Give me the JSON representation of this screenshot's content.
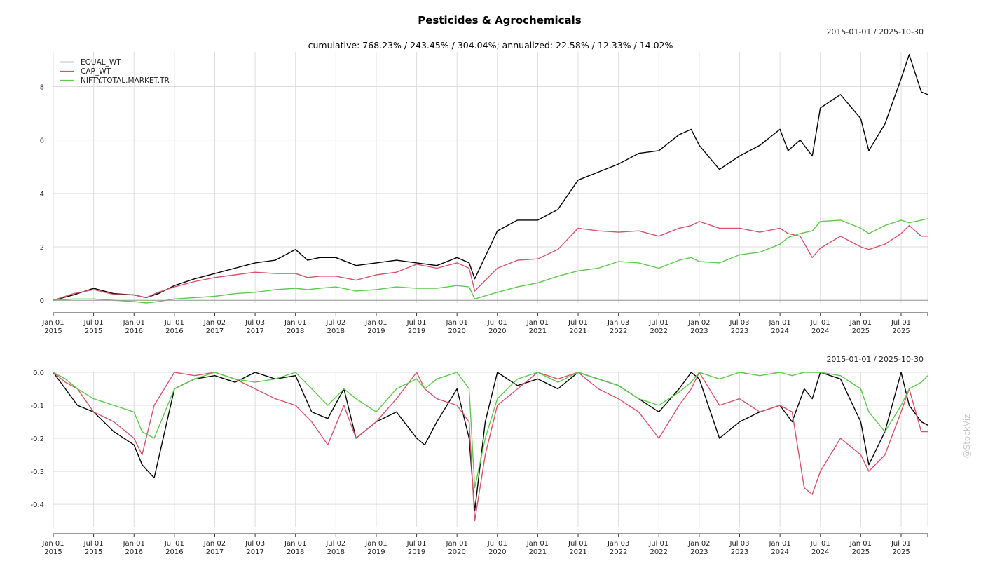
{
  "chart_data": [
    {
      "type": "line",
      "title": "Pesticides & Agrochemicals",
      "subtitle": "cumulative: 768.23% / 243.45% / 304.04%; annualized: 22.58% / 12.33% / 14.02%",
      "date_range": "2015-01-01 / 2025-10-30",
      "x_ticks": [
        {
          "m": "Jan 01",
          "y": "2015",
          "t": 2015.0
        },
        {
          "m": "Jul 01",
          "y": "2015",
          "t": 2015.5
        },
        {
          "m": "Jan 01",
          "y": "2016",
          "t": 2016.0
        },
        {
          "m": "Jul 01",
          "y": "2016",
          "t": 2016.5
        },
        {
          "m": "Jan 02",
          "y": "2017",
          "t": 2017.0
        },
        {
          "m": "Jul 03",
          "y": "2017",
          "t": 2017.5
        },
        {
          "m": "Jan 01",
          "y": "2018",
          "t": 2018.0
        },
        {
          "m": "Jul 02",
          "y": "2018",
          "t": 2018.5
        },
        {
          "m": "Jan 01",
          "y": "2019",
          "t": 2019.0
        },
        {
          "m": "Jul 01",
          "y": "2019",
          "t": 2019.5
        },
        {
          "m": "Jan 01",
          "y": "2020",
          "t": 2020.0
        },
        {
          "m": "Jul 01",
          "y": "2020",
          "t": 2020.5
        },
        {
          "m": "Jan 01",
          "y": "2021",
          "t": 2021.0
        },
        {
          "m": "Jul 01",
          "y": "2021",
          "t": 2021.5
        },
        {
          "m": "Jan 03",
          "y": "2022",
          "t": 2022.0
        },
        {
          "m": "Jul 01",
          "y": "2022",
          "t": 2022.5
        },
        {
          "m": "Jan 02",
          "y": "2023",
          "t": 2023.0
        },
        {
          "m": "Jul 03",
          "y": "2023",
          "t": 2023.5
        },
        {
          "m": "Jan 01",
          "y": "2024",
          "t": 2024.0
        },
        {
          "m": "Jul 01",
          "y": "2024",
          "t": 2024.5
        },
        {
          "m": "Jan 01",
          "y": "2025",
          "t": 2025.0
        },
        {
          "m": "Jul 01",
          "y": "2025",
          "t": 2025.5
        }
      ],
      "xlim": [
        2015.0,
        2025.83
      ],
      "ylim": [
        -0.1,
        9.3
      ],
      "y_ticks": [
        0,
        2,
        4,
        6,
        8
      ],
      "grid": true,
      "legend_position": "top-left",
      "series": [
        {
          "name": "EQUAL_WT",
          "color": "#000000",
          "x": [
            2015.0,
            2015.25,
            2015.5,
            2015.75,
            2016.0,
            2016.15,
            2016.3,
            2016.5,
            2016.75,
            2017.0,
            2017.25,
            2017.5,
            2017.75,
            2018.0,
            2018.15,
            2018.3,
            2018.5,
            2018.75,
            2019.0,
            2019.25,
            2019.5,
            2019.75,
            2020.0,
            2020.15,
            2020.22,
            2020.5,
            2020.75,
            2021.0,
            2021.25,
            2021.5,
            2021.75,
            2022.0,
            2022.25,
            2022.5,
            2022.75,
            2022.9,
            2023.0,
            2023.25,
            2023.5,
            2023.75,
            2024.0,
            2024.1,
            2024.25,
            2024.4,
            2024.5,
            2024.75,
            2025.0,
            2025.1,
            2025.3,
            2025.5,
            2025.6,
            2025.75,
            2025.83
          ],
          "y": [
            0.0,
            0.2,
            0.45,
            0.25,
            0.2,
            0.1,
            0.25,
            0.55,
            0.8,
            1.0,
            1.2,
            1.4,
            1.5,
            1.9,
            1.5,
            1.6,
            1.6,
            1.3,
            1.4,
            1.5,
            1.4,
            1.3,
            1.6,
            1.4,
            0.8,
            2.6,
            3.0,
            3.0,
            3.4,
            4.5,
            4.8,
            5.1,
            5.5,
            5.6,
            6.2,
            6.4,
            5.8,
            4.9,
            5.4,
            5.8,
            6.4,
            5.6,
            6.0,
            5.4,
            7.2,
            7.7,
            6.8,
            5.6,
            6.6,
            8.3,
            9.2,
            7.8,
            7.7
          ]
        },
        {
          "name": "CAP_WT",
          "color": "#d9536b",
          "x": [
            2015.0,
            2015.25,
            2015.5,
            2015.75,
            2016.0,
            2016.15,
            2016.3,
            2016.5,
            2016.75,
            2017.0,
            2017.25,
            2017.5,
            2017.75,
            2018.0,
            2018.15,
            2018.3,
            2018.5,
            2018.75,
            2019.0,
            2019.25,
            2019.5,
            2019.75,
            2020.0,
            2020.15,
            2020.22,
            2020.5,
            2020.75,
            2021.0,
            2021.25,
            2021.5,
            2021.75,
            2022.0,
            2022.25,
            2022.5,
            2022.75,
            2022.9,
            2023.0,
            2023.25,
            2023.5,
            2023.75,
            2024.0,
            2024.1,
            2024.25,
            2024.4,
            2024.5,
            2024.75,
            2025.0,
            2025.1,
            2025.3,
            2025.5,
            2025.6,
            2025.75,
            2025.83
          ],
          "y": [
            0.0,
            0.25,
            0.4,
            0.22,
            0.2,
            0.1,
            0.3,
            0.5,
            0.7,
            0.85,
            0.95,
            1.05,
            1.0,
            1.0,
            0.85,
            0.9,
            0.9,
            0.75,
            0.95,
            1.05,
            1.35,
            1.2,
            1.4,
            1.2,
            0.35,
            1.2,
            1.5,
            1.55,
            1.9,
            2.7,
            2.6,
            2.55,
            2.6,
            2.4,
            2.7,
            2.8,
            2.95,
            2.7,
            2.7,
            2.55,
            2.7,
            2.5,
            2.4,
            1.6,
            1.95,
            2.4,
            2.0,
            1.9,
            2.1,
            2.5,
            2.8,
            2.4,
            2.4
          ]
        },
        {
          "name": "NIFTY.TOTAL.MARKET.TR",
          "color": "#5cca4b",
          "x": [
            2015.0,
            2015.25,
            2015.5,
            2015.75,
            2016.0,
            2016.15,
            2016.3,
            2016.5,
            2016.75,
            2017.0,
            2017.25,
            2017.5,
            2017.75,
            2018.0,
            2018.15,
            2018.3,
            2018.5,
            2018.75,
            2019.0,
            2019.25,
            2019.5,
            2019.75,
            2020.0,
            2020.15,
            2020.22,
            2020.5,
            2020.75,
            2021.0,
            2021.25,
            2021.5,
            2021.75,
            2022.0,
            2022.25,
            2022.5,
            2022.75,
            2022.9,
            2023.0,
            2023.25,
            2023.5,
            2023.75,
            2024.0,
            2024.1,
            2024.25,
            2024.4,
            2024.5,
            2024.75,
            2025.0,
            2025.1,
            2025.3,
            2025.5,
            2025.6,
            2025.75,
            2025.83
          ],
          "y": [
            0.0,
            0.05,
            0.05,
            0.0,
            -0.05,
            -0.1,
            -0.05,
            0.05,
            0.1,
            0.15,
            0.25,
            0.3,
            0.4,
            0.45,
            0.4,
            0.45,
            0.5,
            0.35,
            0.4,
            0.5,
            0.45,
            0.45,
            0.55,
            0.5,
            0.05,
            0.3,
            0.5,
            0.65,
            0.9,
            1.1,
            1.2,
            1.45,
            1.4,
            1.2,
            1.5,
            1.6,
            1.45,
            1.4,
            1.7,
            1.8,
            2.1,
            2.35,
            2.5,
            2.6,
            2.95,
            3.0,
            2.7,
            2.5,
            2.8,
            3.0,
            2.9,
            3.0,
            3.05
          ]
        }
      ]
    },
    {
      "type": "line",
      "date_range": "2015-01-01 / 2025-10-30",
      "xlim": [
        2015.0,
        2025.83
      ],
      "ylim": [
        -0.47,
        0.0
      ],
      "y_ticks": [
        {
          "v": 0.0,
          "label": "0.0"
        },
        {
          "v": -0.1,
          "label": "-0.1"
        },
        {
          "v": -0.2,
          "label": "-0.2"
        },
        {
          "v": -0.3,
          "label": "-0.3"
        },
        {
          "v": -0.4,
          "label": "-0.4"
        }
      ],
      "grid": true,
      "series": [
        {
          "name": "EQUAL_WT",
          "color": "#000000",
          "x": [
            2015.0,
            2015.15,
            2015.3,
            2015.5,
            2015.75,
            2016.0,
            2016.1,
            2016.25,
            2016.5,
            2016.75,
            2017.0,
            2017.25,
            2017.5,
            2017.75,
            2018.0,
            2018.2,
            2018.4,
            2018.6,
            2018.75,
            2019.0,
            2019.25,
            2019.5,
            2019.6,
            2019.75,
            2020.0,
            2020.15,
            2020.22,
            2020.35,
            2020.5,
            2020.75,
            2021.0,
            2021.25,
            2021.5,
            2021.75,
            2022.0,
            2022.25,
            2022.5,
            2022.75,
            2022.9,
            2023.0,
            2023.25,
            2023.5,
            2023.75,
            2024.0,
            2024.15,
            2024.3,
            2024.4,
            2024.5,
            2024.75,
            2025.0,
            2025.1,
            2025.3,
            2025.5,
            2025.6,
            2025.75,
            2025.83
          ],
          "y": [
            0.0,
            -0.05,
            -0.1,
            -0.12,
            -0.18,
            -0.22,
            -0.28,
            -0.32,
            -0.05,
            -0.02,
            -0.01,
            -0.03,
            -0.0,
            -0.02,
            -0.01,
            -0.12,
            -0.14,
            -0.05,
            -0.2,
            -0.15,
            -0.12,
            -0.2,
            -0.22,
            -0.15,
            -0.05,
            -0.2,
            -0.42,
            -0.15,
            -0.0,
            -0.04,
            -0.02,
            -0.05,
            -0.0,
            -0.02,
            -0.04,
            -0.08,
            -0.12,
            -0.05,
            -0.0,
            -0.02,
            -0.2,
            -0.15,
            -0.12,
            -0.1,
            -0.15,
            -0.05,
            -0.08,
            -0.0,
            -0.02,
            -0.15,
            -0.28,
            -0.18,
            -0.0,
            -0.1,
            -0.15,
            -0.16
          ]
        },
        {
          "name": "CAP_WT",
          "color": "#d9536b",
          "x": [
            2015.0,
            2015.15,
            2015.3,
            2015.5,
            2015.75,
            2016.0,
            2016.1,
            2016.25,
            2016.5,
            2016.75,
            2017.0,
            2017.25,
            2017.5,
            2017.75,
            2018.0,
            2018.2,
            2018.4,
            2018.6,
            2018.75,
            2019.0,
            2019.25,
            2019.5,
            2019.6,
            2019.75,
            2020.0,
            2020.15,
            2020.22,
            2020.35,
            2020.5,
            2020.75,
            2021.0,
            2021.25,
            2021.5,
            2021.75,
            2022.0,
            2022.25,
            2022.5,
            2022.75,
            2022.9,
            2023.0,
            2023.25,
            2023.5,
            2023.75,
            2024.0,
            2024.15,
            2024.3,
            2024.4,
            2024.5,
            2024.75,
            2025.0,
            2025.1,
            2025.3,
            2025.5,
            2025.6,
            2025.75,
            2025.83
          ],
          "y": [
            0.0,
            -0.03,
            -0.05,
            -0.12,
            -0.15,
            -0.2,
            -0.25,
            -0.1,
            -0.0,
            -0.01,
            -0.0,
            -0.02,
            -0.05,
            -0.08,
            -0.1,
            -0.15,
            -0.22,
            -0.1,
            -0.2,
            -0.15,
            -0.08,
            -0.0,
            -0.05,
            -0.08,
            -0.1,
            -0.15,
            -0.45,
            -0.25,
            -0.1,
            -0.05,
            -0.0,
            -0.02,
            -0.0,
            -0.05,
            -0.08,
            -0.12,
            -0.2,
            -0.1,
            -0.05,
            -0.0,
            -0.1,
            -0.08,
            -0.12,
            -0.1,
            -0.12,
            -0.35,
            -0.37,
            -0.3,
            -0.2,
            -0.25,
            -0.3,
            -0.25,
            -0.12,
            -0.05,
            -0.18,
            -0.18
          ]
        },
        {
          "name": "NIFTY.TOTAL.MARKET.TR",
          "color": "#5cca4b",
          "x": [
            2015.0,
            2015.15,
            2015.3,
            2015.5,
            2015.75,
            2016.0,
            2016.1,
            2016.25,
            2016.5,
            2016.75,
            2017.0,
            2017.25,
            2017.5,
            2017.75,
            2018.0,
            2018.2,
            2018.4,
            2018.6,
            2018.75,
            2019.0,
            2019.25,
            2019.5,
            2019.6,
            2019.75,
            2020.0,
            2020.15,
            2020.22,
            2020.35,
            2020.5,
            2020.75,
            2021.0,
            2021.25,
            2021.5,
            2021.75,
            2022.0,
            2022.25,
            2022.5,
            2022.75,
            2022.9,
            2023.0,
            2023.25,
            2023.5,
            2023.75,
            2024.0,
            2024.15,
            2024.3,
            2024.4,
            2024.5,
            2024.75,
            2025.0,
            2025.1,
            2025.3,
            2025.5,
            2025.6,
            2025.75,
            2025.83
          ],
          "y": [
            0.0,
            -0.02,
            -0.05,
            -0.08,
            -0.1,
            -0.12,
            -0.18,
            -0.2,
            -0.05,
            -0.02,
            -0.0,
            -0.02,
            -0.03,
            -0.02,
            -0.0,
            -0.05,
            -0.1,
            -0.05,
            -0.08,
            -0.12,
            -0.05,
            -0.02,
            -0.05,
            -0.02,
            -0.0,
            -0.05,
            -0.35,
            -0.2,
            -0.08,
            -0.02,
            -0.0,
            -0.03,
            -0.0,
            -0.02,
            -0.04,
            -0.08,
            -0.1,
            -0.06,
            -0.03,
            -0.0,
            -0.02,
            -0.0,
            -0.01,
            -0.0,
            -0.01,
            -0.0,
            -0.0,
            -0.0,
            -0.01,
            -0.05,
            -0.12,
            -0.18,
            -0.1,
            -0.05,
            -0.03,
            -0.01
          ]
        }
      ]
    }
  ],
  "watermark": "@StockViz"
}
